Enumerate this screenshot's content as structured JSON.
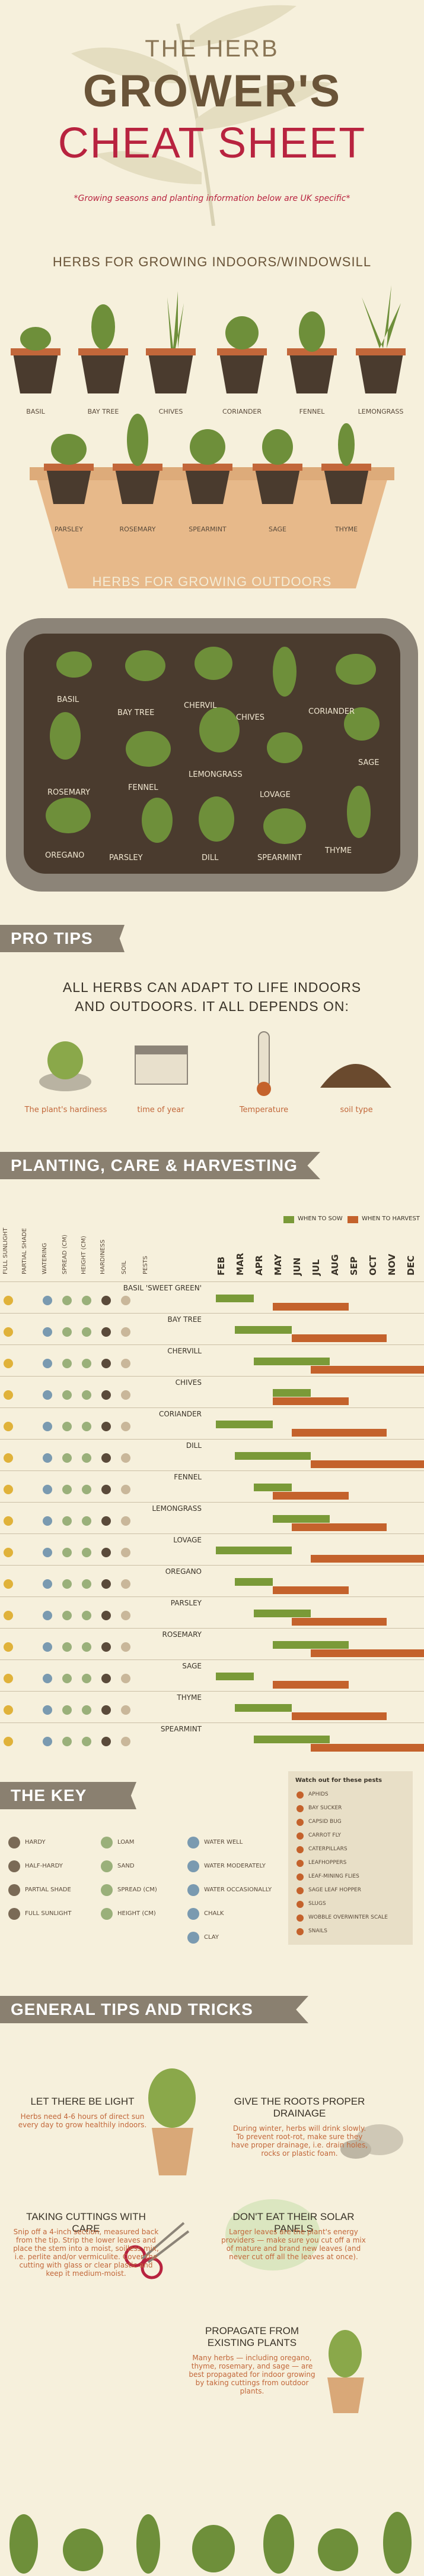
{
  "header": {
    "line1": "THE HERB",
    "line2": "GROWER'S",
    "line3": "CHEAT SHEET",
    "subtitle": "*Growing seasons and planting information below are UK specific*"
  },
  "indoors": {
    "title": "HERBS FOR GROWING INDOORS/WINDOWSILL",
    "row1": [
      "BASIL",
      "BAY TREE",
      "CHIVES",
      "CORIANDER",
      "FENNEL",
      "LEMONGRASS"
    ],
    "row2": [
      "PARSLEY",
      "ROSEMARY",
      "SPEARMINT",
      "SAGE",
      "THYME"
    ]
  },
  "outdoors": {
    "title": "HERBS FOR GROWING OUTDOORS",
    "herbs": [
      "BASIL",
      "BAY TREE",
      "CHERVIL",
      "CHIVES",
      "CORIANDER",
      "SAGE",
      "ROSEMARY",
      "FENNEL",
      "LEMONGRASS",
      "LOVAGE",
      "THYME",
      "OREGANO",
      "PARSLEY",
      "DILL",
      "SPEARMINT"
    ]
  },
  "pro_tips": {
    "banner": "PRO TIPS",
    "headline1": "ALL HERBS CAN ADAPT TO LIFE INDOORS",
    "headline2": "AND OUTDOORS. IT ALL DEPENDS ON:",
    "items": [
      "The plant's hardiness",
      "time of year",
      "Temperature",
      "soil type"
    ]
  },
  "planting": {
    "banner": "PLANTING, CARE & HARVESTING",
    "legend_sow": "WHEN TO SOW",
    "legend_harvest": "WHEN TO HARVEST",
    "columns": [
      "FULL SUNLIGHT",
      "PARTIAL SHADE",
      "WATERING",
      "SPREAD (CM)",
      "HEIGHT (CM)",
      "HARDINESS",
      "SOIL",
      "PESTS"
    ],
    "months": [
      "FEB",
      "MAR",
      "APR",
      "MAY",
      "JUN",
      "JUL",
      "AUG",
      "SEP",
      "OCT",
      "NOV",
      "DEC"
    ],
    "herbs": [
      "BASIL 'SWEET GREEN'",
      "BAY TREE",
      "CHERVILL",
      "CHIVES",
      "CORIANDER",
      "DILL",
      "FENNEL",
      "LEMONGRASS",
      "LOVAGE",
      "OREGANO",
      "PARSLEY",
      "ROSEMARY",
      "SAGE",
      "THYME",
      "SPEARMINT"
    ]
  },
  "key": {
    "banner": "THE KEY",
    "col1": [
      "HARDY",
      "HALF-HARDY",
      "PARTIAL SHADE",
      "FULL SUNLIGHT"
    ],
    "col2": [
      "LOAM",
      "SAND",
      "SPREAD (CM)",
      "HEIGHT (CM)"
    ],
    "col3": [
      "WATER WELL",
      "WATER MODERATELY",
      "WATER OCCASIONALLY",
      "CHALK",
      "CLAY"
    ],
    "pests_title": "Watch out for these pests",
    "pests": [
      "APHIDS",
      "BAY SUCKER",
      "CAPSID BUG",
      "CARROT FLY",
      "CATERPILLARS",
      "LEAFHOPPERS",
      "LEAF-MINING FLIES",
      "SAGE LEAF HOPPER",
      "SLUGS",
      "WOBBLE OVERWINTER SCALE",
      "SNAILS"
    ]
  },
  "general": {
    "banner": "GENERAL TIPS AND TRICKS",
    "tips": [
      {
        "title": "LET THERE BE LIGHT",
        "body": "Herbs need 4-6 hours of direct sun every day to grow healthily indoors."
      },
      {
        "title": "GIVE THE ROOTS PROPER DRAINAGE",
        "body": "During winter, herbs will drink slowly. To prevent root-rot, make sure they have proper drainage, i.e. drain holes, rocks or plastic foam."
      },
      {
        "title": "TAKING CUTTINGS WITH CARE",
        "body": "Snip off a 4-inch section, measured back from the tip. Strip the lower leaves and place the stem into a moist, soilless mix, i.e. perlite and/or vermiculite. Cover the cutting with glass or clear plastic and keep it medium-moist."
      },
      {
        "title": "DON'T EAT THEIR SOLAR PANELS",
        "body": "Larger leaves are the plant's energy providers — make sure you cut off a mix of mature and brand new leaves (and never cut off all the leaves at once)."
      },
      {
        "title": "PROPAGATE FROM EXISTING PLANTS",
        "body": "Many herbs — including oregano, thyme, rosemary, and sage — are best propagated for indoor growing by taking cuttings from outdoor plants."
      }
    ]
  },
  "colors": {
    "title_red": "#b8233f",
    "brown": "#6a5438",
    "sow_green": "#7a9a38",
    "harvest_orange": "#c4622c",
    "banner_grey": "#8a8070",
    "soil": "#4a3b2e",
    "pot": "#d9a878"
  }
}
